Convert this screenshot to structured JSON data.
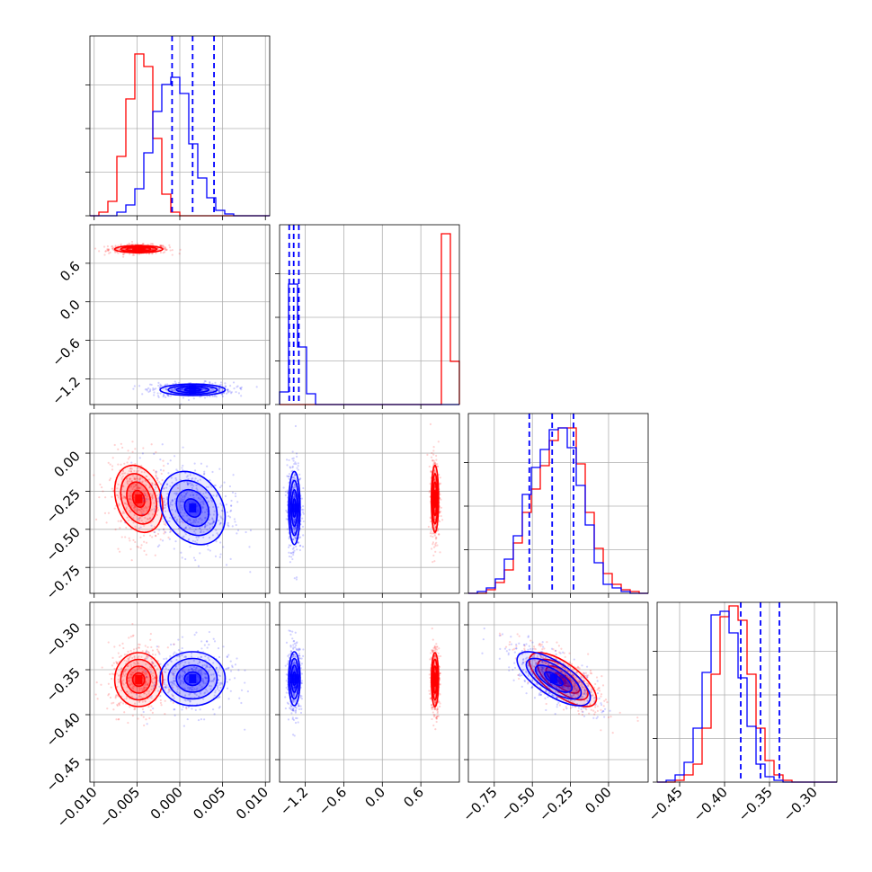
{
  "chart_data": {
    "type": "scatter",
    "subtype": "corner-plot",
    "title": "",
    "series": [
      {
        "name": "",
        "color": "#ff0000"
      },
      {
        "name": "",
        "color": "#0000ff"
      }
    ],
    "grid": true,
    "variables": [
      {
        "range": [
          -0.0105,
          0.0105
        ],
        "ticks": [
          "−0.010",
          "−0.005",
          "0.000",
          "0.005",
          "0.010"
        ],
        "tick_values": [
          -0.01,
          -0.005,
          0.0,
          0.005,
          0.01
        ]
      },
      {
        "range": [
          -1.6,
          1.2
        ],
        "ticks": [
          "−1.2",
          "−0.6",
          "0.0",
          "0.6"
        ],
        "tick_values": [
          -1.2,
          -0.6,
          0.0,
          0.6
        ]
      },
      {
        "range": [
          -0.92,
          0.26
        ],
        "ticks": [
          "−0.75",
          "−0.50",
          "−0.25",
          "0.00"
        ],
        "tick_values": [
          -0.75,
          -0.5,
          -0.25,
          0.0
        ]
      },
      {
        "range": [
          -0.475,
          -0.275
        ],
        "ticks": [
          "−0.45",
          "−0.40",
          "−0.35",
          "−0.30"
        ],
        "tick_values": [
          -0.45,
          -0.4,
          -0.35,
          -0.3
        ]
      }
    ],
    "blue_quantiles": [
      [
        -0.0009,
        0.0015,
        0.004
      ],
      [
        -1.45,
        -1.38,
        -1.3
      ],
      [
        -0.52,
        -0.37,
        -0.23
      ],
      [
        -0.382,
        -0.36,
        -0.339
      ]
    ],
    "histograms": {
      "red": [
        [
          0.0,
          0.02,
          0.08,
          0.33,
          0.65,
          0.9,
          0.83,
          0.43,
          0.12,
          0.02,
          0.0,
          0.0,
          0.0,
          0.0,
          0.0,
          0.0,
          0.0,
          0.0,
          0.0,
          0.0
        ],
        [
          0.0,
          0.0,
          0.0,
          0.0,
          0.0,
          0.0,
          0.0,
          0.0,
          0.0,
          0.0,
          0.0,
          0.0,
          0.0,
          0.0,
          0.0,
          0.0,
          0.0,
          0.0,
          0.95,
          0.24
        ],
        [
          0.0,
          0.0,
          0.02,
          0.06,
          0.13,
          0.28,
          0.45,
          0.58,
          0.71,
          0.85,
          0.92,
          0.92,
          0.72,
          0.45,
          0.25,
          0.11,
          0.05,
          0.02,
          0.01,
          0.0
        ],
        [
          0.0,
          0.0,
          0.01,
          0.04,
          0.1,
          0.3,
          0.6,
          0.92,
          0.98,
          0.9,
          0.6,
          0.3,
          0.12,
          0.04,
          0.01,
          0.0,
          0.0,
          0.0,
          0.0,
          0.0
        ]
      ],
      "blue": [
        [
          0.0,
          0.0,
          0.0,
          0.02,
          0.06,
          0.15,
          0.35,
          0.58,
          0.73,
          0.77,
          0.68,
          0.4,
          0.21,
          0.1,
          0.03,
          0.01,
          0.0,
          0.0,
          0.0,
          0.0
        ],
        [
          0.07,
          0.67,
          0.32,
          0.06,
          0.0,
          0.0,
          0.0,
          0.0,
          0.0,
          0.0,
          0.0,
          0.0,
          0.0,
          0.0,
          0.0,
          0.0,
          0.0,
          0.0,
          0.0,
          0.0
        ],
        [
          0.0,
          0.01,
          0.03,
          0.08,
          0.19,
          0.32,
          0.55,
          0.7,
          0.8,
          0.91,
          0.92,
          0.81,
          0.6,
          0.38,
          0.17,
          0.05,
          0.03,
          0.01,
          0.0,
          0.0
        ],
        [
          0.0,
          0.01,
          0.04,
          0.11,
          0.3,
          0.61,
          0.93,
          0.95,
          0.83,
          0.58,
          0.31,
          0.1,
          0.03,
          0.01,
          0.0,
          0.0,
          0.0,
          0.0,
          0.0,
          0.0
        ]
      ]
    },
    "red_clusters": [
      {
        "mean": [
          -0.0048,
          0.82,
          -0.3,
          -0.361
        ],
        "sd": [
          0.0014,
          0.028,
          0.11,
          0.015
        ]
      }
    ],
    "blue_clusters": [
      {
        "mean": [
          0.0015,
          -1.37,
          -0.36,
          -0.36
        ],
        "sd": [
          0.0019,
          0.045,
          0.12,
          0.015
        ]
      }
    ]
  }
}
